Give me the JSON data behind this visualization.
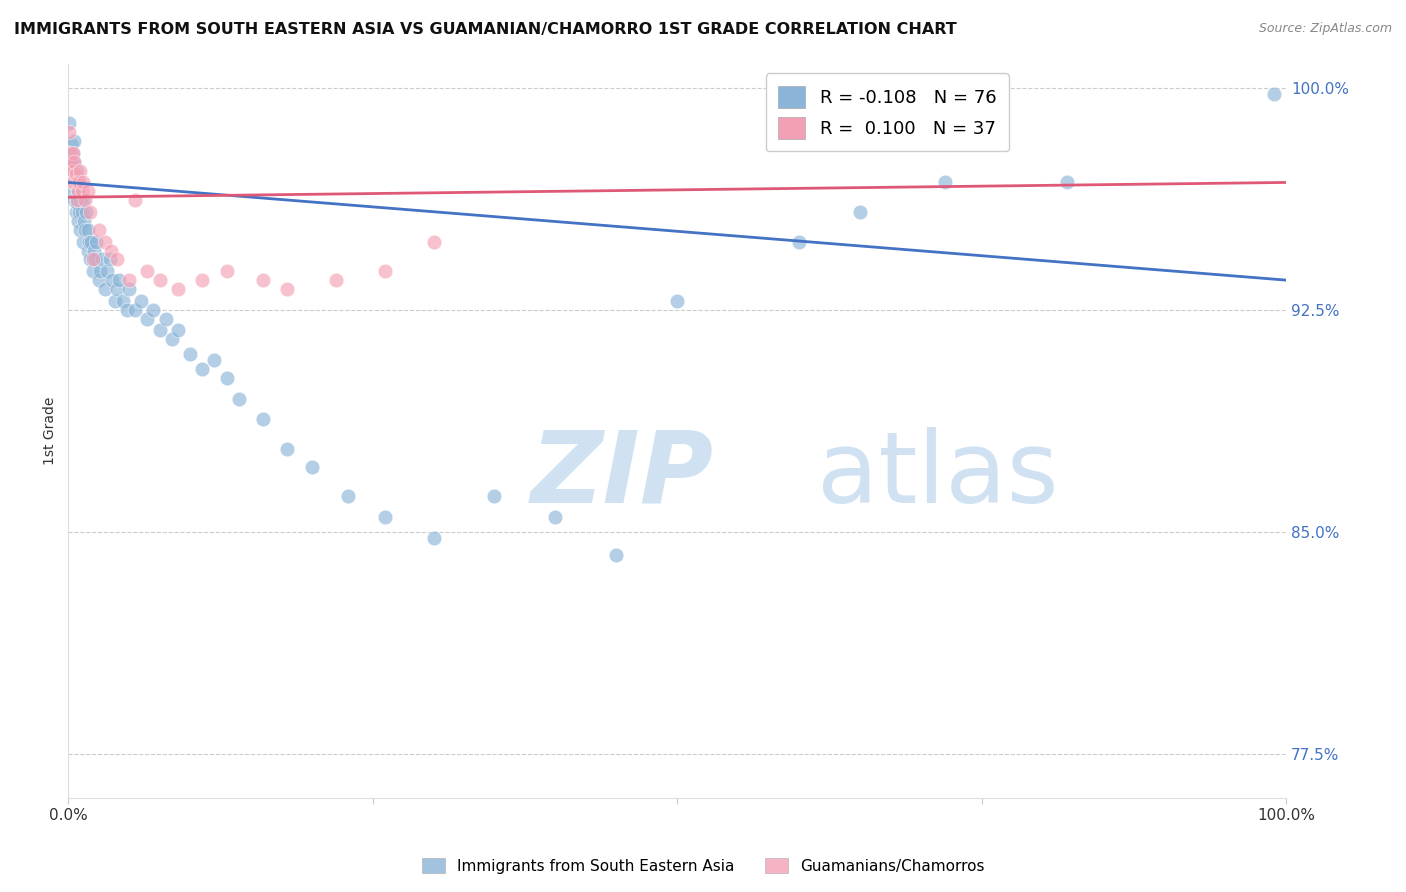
{
  "title": "IMMIGRANTS FROM SOUTH EASTERN ASIA VS GUAMANIAN/CHAMORRO 1ST GRADE CORRELATION CHART",
  "source": "Source: ZipAtlas.com",
  "ylabel": "1st Grade",
  "legend_label1": "Immigrants from South Eastern Asia",
  "legend_label2": "Guamanians/Chamorros",
  "R1": -0.108,
  "N1": 76,
  "R2": 0.1,
  "N2": 37,
  "blue_color": "#8ab4d8",
  "pink_color": "#f4a0b4",
  "blue_line_color": "#4472c4",
  "pink_line_color": "#e05878",
  "blue_x": [
    0.001,
    0.002,
    0.002,
    0.003,
    0.003,
    0.004,
    0.004,
    0.005,
    0.005,
    0.005,
    0.006,
    0.006,
    0.007,
    0.007,
    0.008,
    0.008,
    0.009,
    0.009,
    0.01,
    0.01,
    0.011,
    0.012,
    0.012,
    0.013,
    0.014,
    0.015,
    0.016,
    0.016,
    0.017,
    0.018,
    0.019,
    0.02,
    0.021,
    0.022,
    0.023,
    0.025,
    0.026,
    0.028,
    0.03,
    0.032,
    0.034,
    0.036,
    0.038,
    0.04,
    0.042,
    0.045,
    0.048,
    0.05,
    0.055,
    0.06,
    0.065,
    0.07,
    0.075,
    0.08,
    0.085,
    0.09,
    0.1,
    0.11,
    0.12,
    0.13,
    0.14,
    0.16,
    0.18,
    0.2,
    0.23,
    0.26,
    0.3,
    0.35,
    0.4,
    0.45,
    0.5,
    0.6,
    0.65,
    0.72,
    0.82,
    0.99
  ],
  "blue_y": [
    0.988,
    0.981,
    0.975,
    0.972,
    0.968,
    0.978,
    0.965,
    0.982,
    0.975,
    0.962,
    0.968,
    0.958,
    0.972,
    0.961,
    0.965,
    0.955,
    0.968,
    0.958,
    0.962,
    0.952,
    0.958,
    0.962,
    0.948,
    0.955,
    0.952,
    0.958,
    0.945,
    0.952,
    0.948,
    0.942,
    0.948,
    0.938,
    0.945,
    0.942,
    0.948,
    0.935,
    0.938,
    0.942,
    0.932,
    0.938,
    0.942,
    0.935,
    0.928,
    0.932,
    0.935,
    0.928,
    0.925,
    0.932,
    0.925,
    0.928,
    0.922,
    0.925,
    0.918,
    0.922,
    0.915,
    0.918,
    0.91,
    0.905,
    0.908,
    0.902,
    0.895,
    0.888,
    0.878,
    0.872,
    0.862,
    0.855,
    0.848,
    0.862,
    0.855,
    0.842,
    0.928,
    0.948,
    0.958,
    0.968,
    0.968,
    0.998
  ],
  "pink_x": [
    0.001,
    0.002,
    0.002,
    0.003,
    0.003,
    0.004,
    0.004,
    0.005,
    0.005,
    0.006,
    0.007,
    0.007,
    0.008,
    0.009,
    0.01,
    0.011,
    0.012,
    0.014,
    0.016,
    0.018,
    0.02,
    0.025,
    0.03,
    0.035,
    0.04,
    0.05,
    0.055,
    0.065,
    0.075,
    0.09,
    0.11,
    0.13,
    0.16,
    0.18,
    0.22,
    0.26,
    0.3
  ],
  "pink_y": [
    0.985,
    0.978,
    0.975,
    0.972,
    0.968,
    0.978,
    0.972,
    0.975,
    0.968,
    0.971,
    0.968,
    0.962,
    0.965,
    0.968,
    0.972,
    0.965,
    0.968,
    0.962,
    0.965,
    0.958,
    0.942,
    0.952,
    0.948,
    0.945,
    0.942,
    0.935,
    0.962,
    0.938,
    0.935,
    0.932,
    0.935,
    0.938,
    0.935,
    0.932,
    0.935,
    0.938,
    0.948
  ],
  "xlim": [
    0.0,
    1.0
  ],
  "ylim": [
    0.76,
    1.008
  ],
  "y_ticks": [
    0.775,
    0.85,
    0.925,
    1.0
  ],
  "y_tick_labels": [
    "77.5%",
    "85.0%",
    "92.5%",
    "100.0%"
  ]
}
